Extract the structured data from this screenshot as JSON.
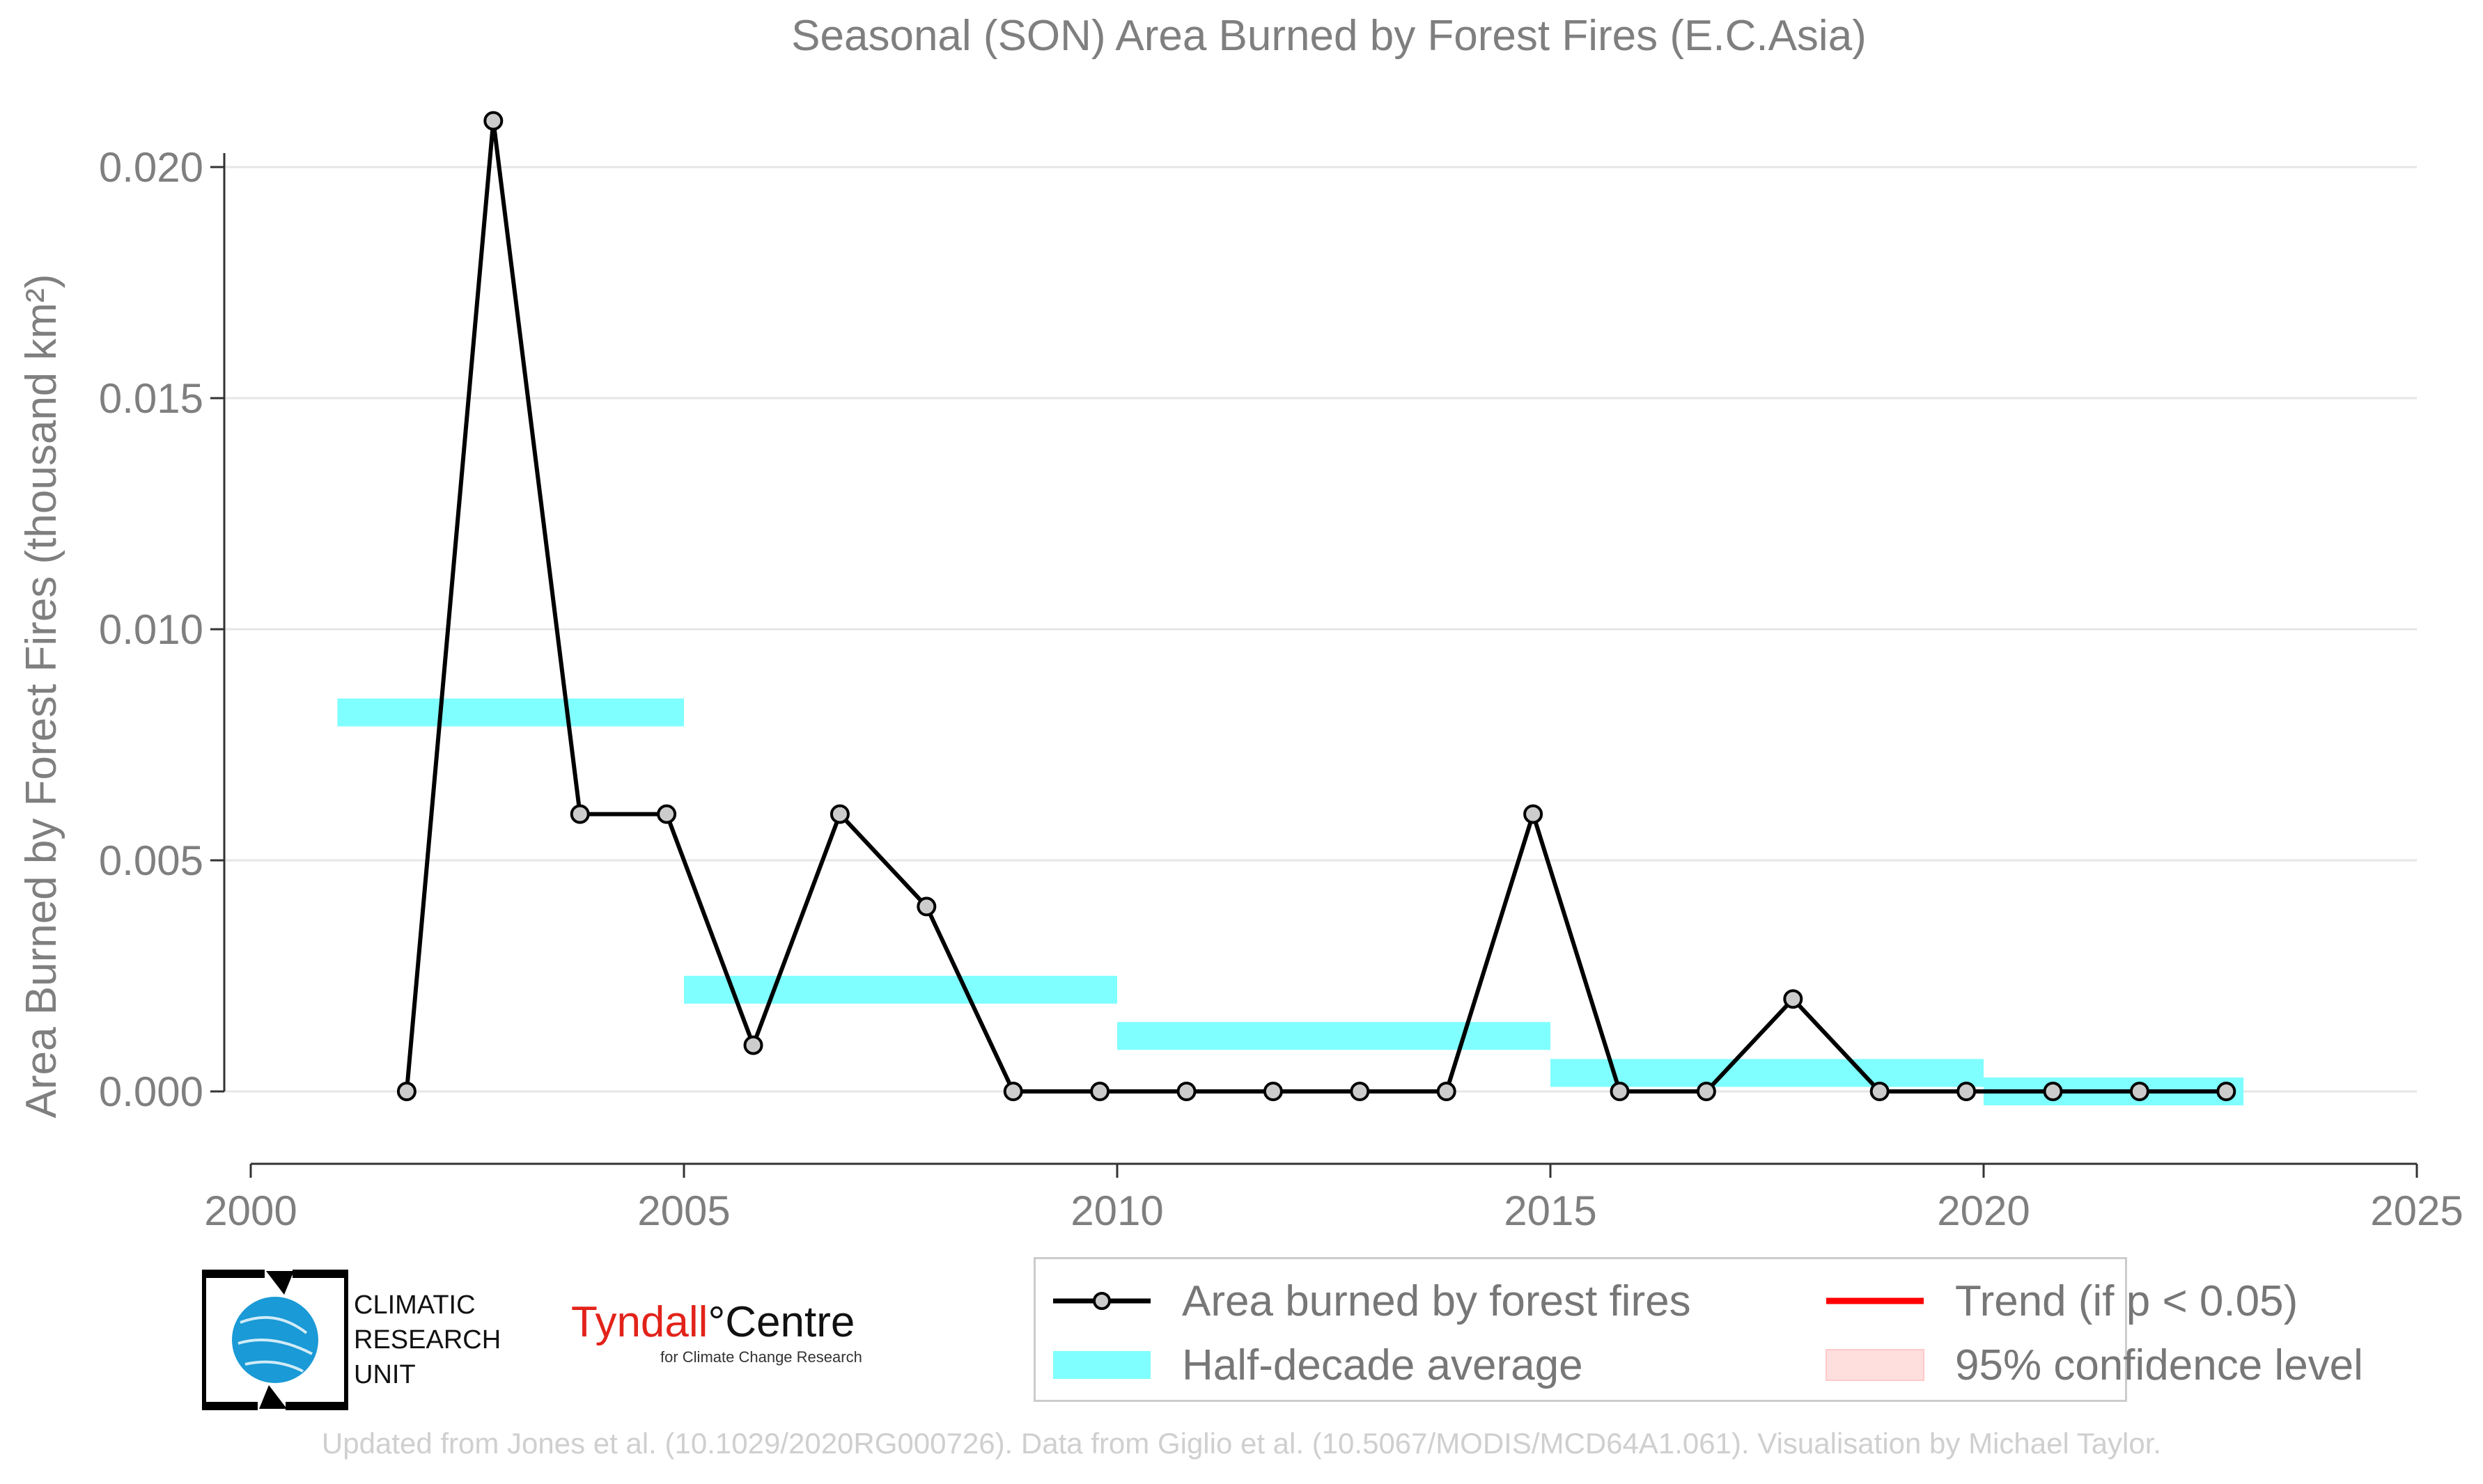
{
  "chart_data": {
    "type": "line",
    "title": "Seasonal (SON) Area Burned by Forest Fires (E.C.Asia)",
    "ylabel": "Area Burned by Forest Fires (thousand km²)",
    "xlabel": "",
    "xlim": [
      2000,
      2025
    ],
    "ylim": [
      -0.0015,
      0.0215
    ],
    "x_ticks": [
      2000,
      2005,
      2010,
      2015,
      2020,
      2025
    ],
    "y_ticks": [
      0.0,
      0.005,
      0.01,
      0.015,
      0.02
    ],
    "y_tick_labels": [
      "0.000",
      "0.005",
      "0.010",
      "0.015",
      "0.020"
    ],
    "grid": "horizontal",
    "series": [
      {
        "name": "Area burned by forest fires",
        "color": "#000000",
        "x": [
          2001.8,
          2002.8,
          2003.8,
          2004.8,
          2005.8,
          2006.8,
          2007.8,
          2008.8,
          2009.8,
          2010.8,
          2011.8,
          2012.8,
          2013.8,
          2014.8,
          2015.8,
          2016.8,
          2017.8,
          2018.8,
          2019.8,
          2020.8,
          2021.8,
          2022.8
        ],
        "y": [
          0.0,
          0.021,
          0.006,
          0.006,
          0.001,
          0.006,
          0.004,
          0.0,
          0.0,
          0.0,
          0.0,
          0.0,
          0.0,
          0.006,
          0.0,
          0.0,
          0.002,
          0.0,
          0.0,
          0.0,
          0.0,
          0.0
        ]
      }
    ],
    "half_decade_average": {
      "name": "Half-decade average",
      "color": "#7fffff",
      "segments": [
        {
          "x0": 2001,
          "x1": 2005,
          "y": 0.0082
        },
        {
          "x0": 2005,
          "x1": 2010,
          "y": 0.0022
        },
        {
          "x0": 2010,
          "x1": 2015,
          "y": 0.0012
        },
        {
          "x0": 2015,
          "x1": 2020,
          "y": 0.0004
        },
        {
          "x0": 2020,
          "x1": 2023,
          "y": 0.0
        }
      ]
    },
    "legend_position": "bottom-right"
  },
  "legend": {
    "line_label": "Area burned by forest fires",
    "avg_label": "Half-decade average",
    "trend_label": "Trend (if p < 0.05)",
    "ci_label": "95% confidence level",
    "trend_color": "#ff0000",
    "ci_color": "#ffdede"
  },
  "logos": {
    "cru_line1": "CLIMATIC",
    "cru_line2": "RESEARCH",
    "cru_line3": "UNIT",
    "tyndall_a": "Tyndall",
    "tyndall_deg": "°",
    "tyndall_b": "Centre",
    "tyndall_sub": "for Climate Change Research"
  },
  "credit": "Updated from Jones et al. (10.1029/2020RG000726). Data from Giglio et al. (10.5067/MODIS/MCD64A1.061). Visualisation by Michael Taylor."
}
